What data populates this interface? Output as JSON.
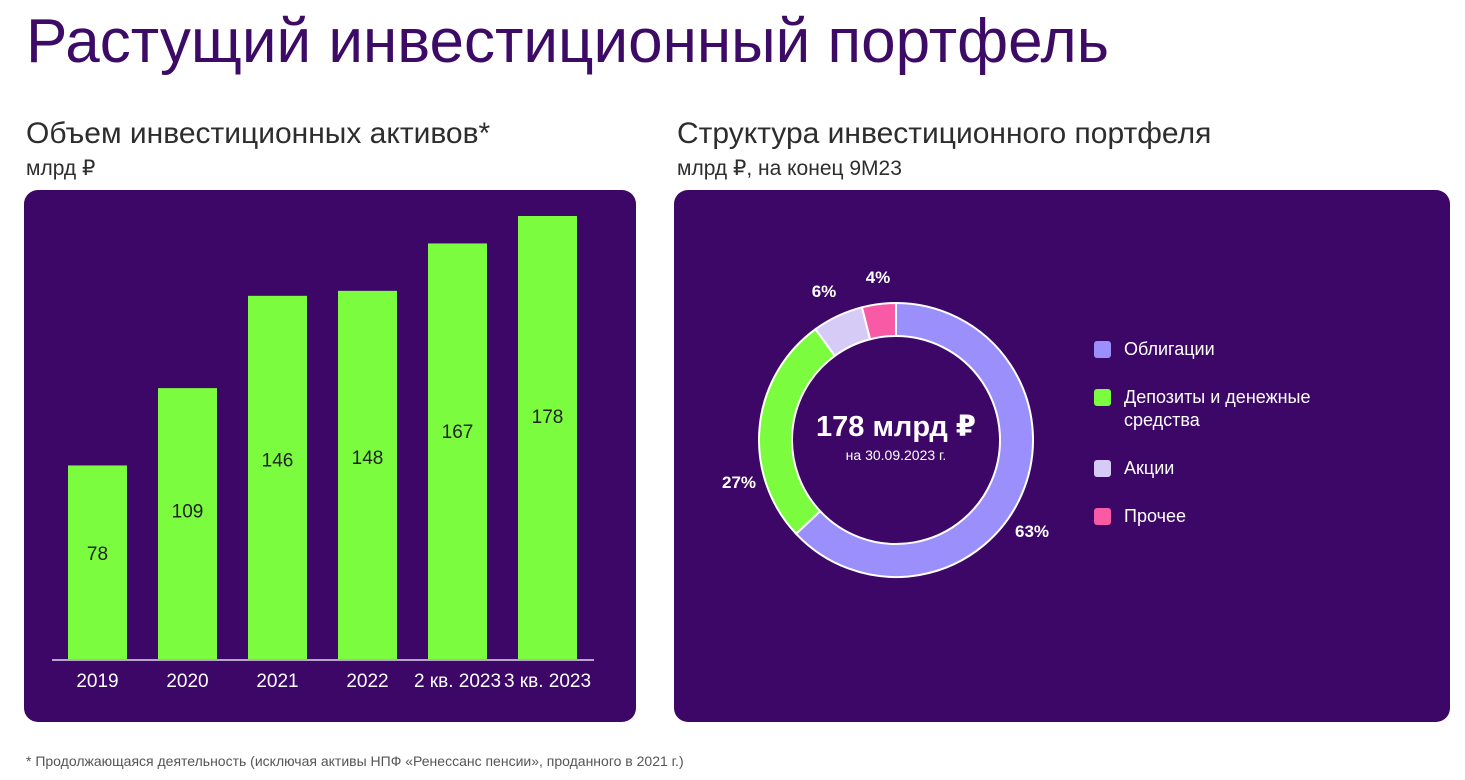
{
  "page": {
    "title": "Растущий инвестиционный портфель",
    "footnote": "* Продолжающаяся деятельность (исключая активы НПФ «Ренессанс пенсии», проданного в 2021 г.)"
  },
  "colors": {
    "title": "#3d0a66",
    "panel_bg": "#3c0766",
    "bar": "#7cfc3f",
    "axis": "#b7a6cc"
  },
  "left_chart": {
    "title": "Объем инвестиционных активов*",
    "unit": "млрд ₽"
  },
  "right_chart": {
    "title": "Структура инвестиционного портфеля",
    "unit": "млрд ₽, на конец 9M23",
    "center_value": "178 млрд ₽",
    "center_date": "на 30.09.2023 г."
  },
  "chart_data": [
    {
      "type": "bar",
      "title": "Объем инвестиционных активов*",
      "ylabel": "млрд ₽",
      "categories": [
        "2019",
        "2020",
        "2021",
        "2022",
        "2 кв. 2023",
        "3 кв. 2023"
      ],
      "values": [
        78,
        109,
        146,
        148,
        167,
        178
      ],
      "value_labels": [
        "78",
        "109",
        "146",
        "148",
        "167",
        "178"
      ],
      "ylim": [
        0,
        178
      ],
      "grid": false,
      "color": "#7cfc3f"
    },
    {
      "type": "pie",
      "title": "Структура инвестиционного портфеля",
      "subtitle": "млрд ₽, на конец 9M23",
      "donut": true,
      "total_label": "178 млрд ₽",
      "total_date": "на 30.09.2023 г.",
      "slices": [
        {
          "name": "Облигации",
          "value": 63,
          "label": "63%",
          "color": "#9b8ffb"
        },
        {
          "name": "Депозиты и денежные средства",
          "value": 27,
          "label": "27%",
          "color": "#7cfc3f"
        },
        {
          "name": "Акции",
          "value": 6,
          "label": "6%",
          "color": "#d6cbf7"
        },
        {
          "name": "Прочее",
          "value": 4,
          "label": "4%",
          "color": "#f95aa6"
        }
      ],
      "legend_position": "right"
    }
  ]
}
